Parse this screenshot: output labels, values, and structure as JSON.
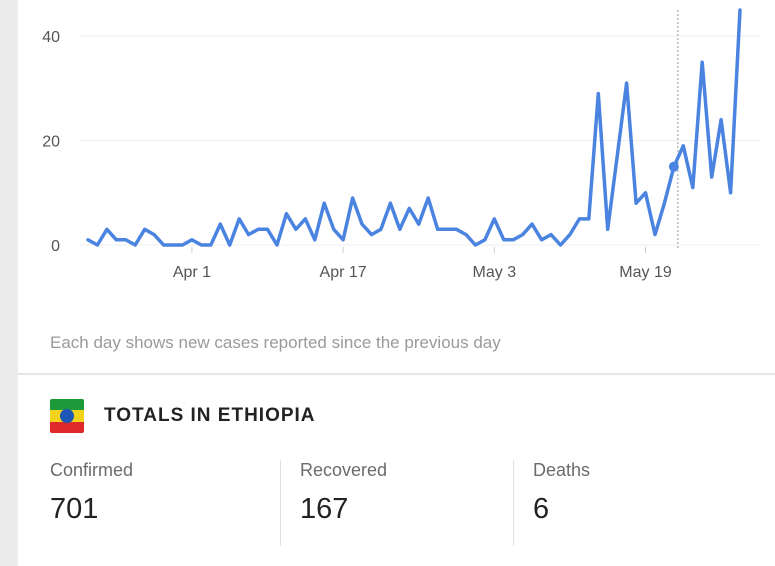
{
  "chart_data": {
    "type": "line",
    "x_tick_labels": [
      "Apr 1",
      "Apr 17",
      "May 3",
      "May 19"
    ],
    "y_tick_labels": [
      "0",
      "20",
      "40"
    ],
    "ylim": [
      0,
      45
    ],
    "series": [
      {
        "values": [
          1,
          0,
          3,
          1,
          1,
          0,
          3,
          2,
          0,
          0,
          0,
          1,
          0,
          0,
          4,
          0,
          5,
          2,
          3,
          3,
          0,
          6,
          3,
          5,
          1,
          8,
          3,
          1,
          9,
          4,
          2,
          3,
          8,
          3,
          7,
          4,
          9,
          3,
          3,
          3,
          2,
          0,
          1,
          5,
          1,
          1,
          2,
          4,
          1,
          2,
          0,
          2,
          5,
          5,
          29,
          3,
          17,
          31,
          8,
          10,
          2,
          8,
          15,
          19,
          11,
          35,
          13,
          24,
          10,
          45
        ],
        "color": "#4a84e0"
      }
    ],
    "grid": "horizontal"
  },
  "caption": "Each day shows new cases reported since the previous day",
  "totals": {
    "title": "TOTALS IN ETHIOPIA",
    "confirmed": {
      "label": "Confirmed",
      "value": "701"
    },
    "recovered": {
      "label": "Recovered",
      "value": "167"
    },
    "deaths": {
      "label": "Deaths",
      "value": "6"
    }
  }
}
